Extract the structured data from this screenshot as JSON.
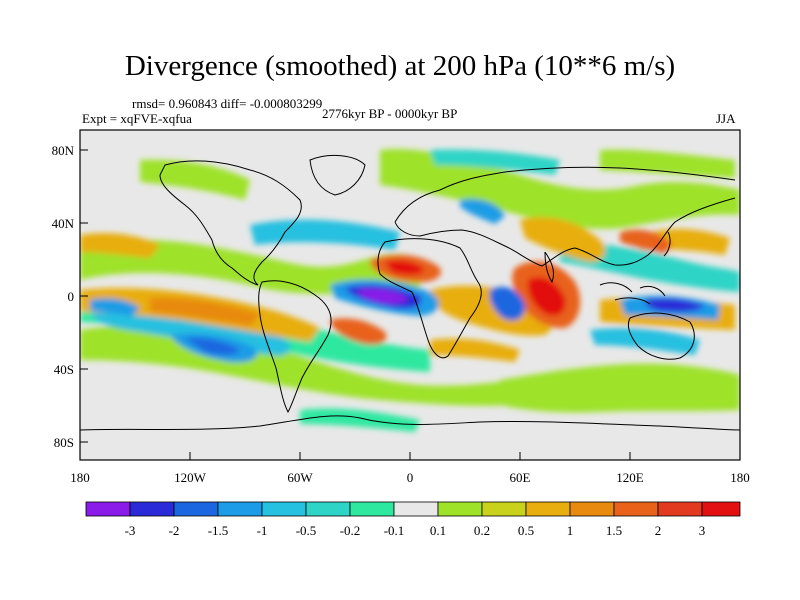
{
  "title": "Divergence (smoothed) at 200 hPa (10**6 m/s)",
  "stats": "rmsd= 0.960843 diff= -0.000803299",
  "experiment": "Expt = xqFVE-xqfua",
  "period": "2776kyr BP - 0000kyr BP",
  "season": "JJA",
  "latitude_ticks": [
    "80N",
    "40N",
    "0",
    "40S",
    "80S"
  ],
  "longitude_ticks": [
    "180",
    "120W",
    "60W",
    "0",
    "60E",
    "120E",
    "180"
  ],
  "colorbar": {
    "labels": [
      "-3",
      "-2",
      "-1.5",
      "-1",
      "-0.5",
      "-0.2",
      "-0.1",
      "0.1",
      "0.2",
      "0.5",
      "1",
      "1.5",
      "2",
      "3"
    ],
    "colors": [
      "#8a1be8",
      "#2a2ad8",
      "#1a66e0",
      "#1c9ce6",
      "#26c0e0",
      "#2ed4c6",
      "#2ee8a0",
      "#e8e8e8",
      "#9ee22a",
      "#c8d21a",
      "#e8ae10",
      "#e88a10",
      "#e8621a",
      "#e23a1e",
      "#e21010"
    ]
  },
  "ocean_color": "#e8e8e8"
}
